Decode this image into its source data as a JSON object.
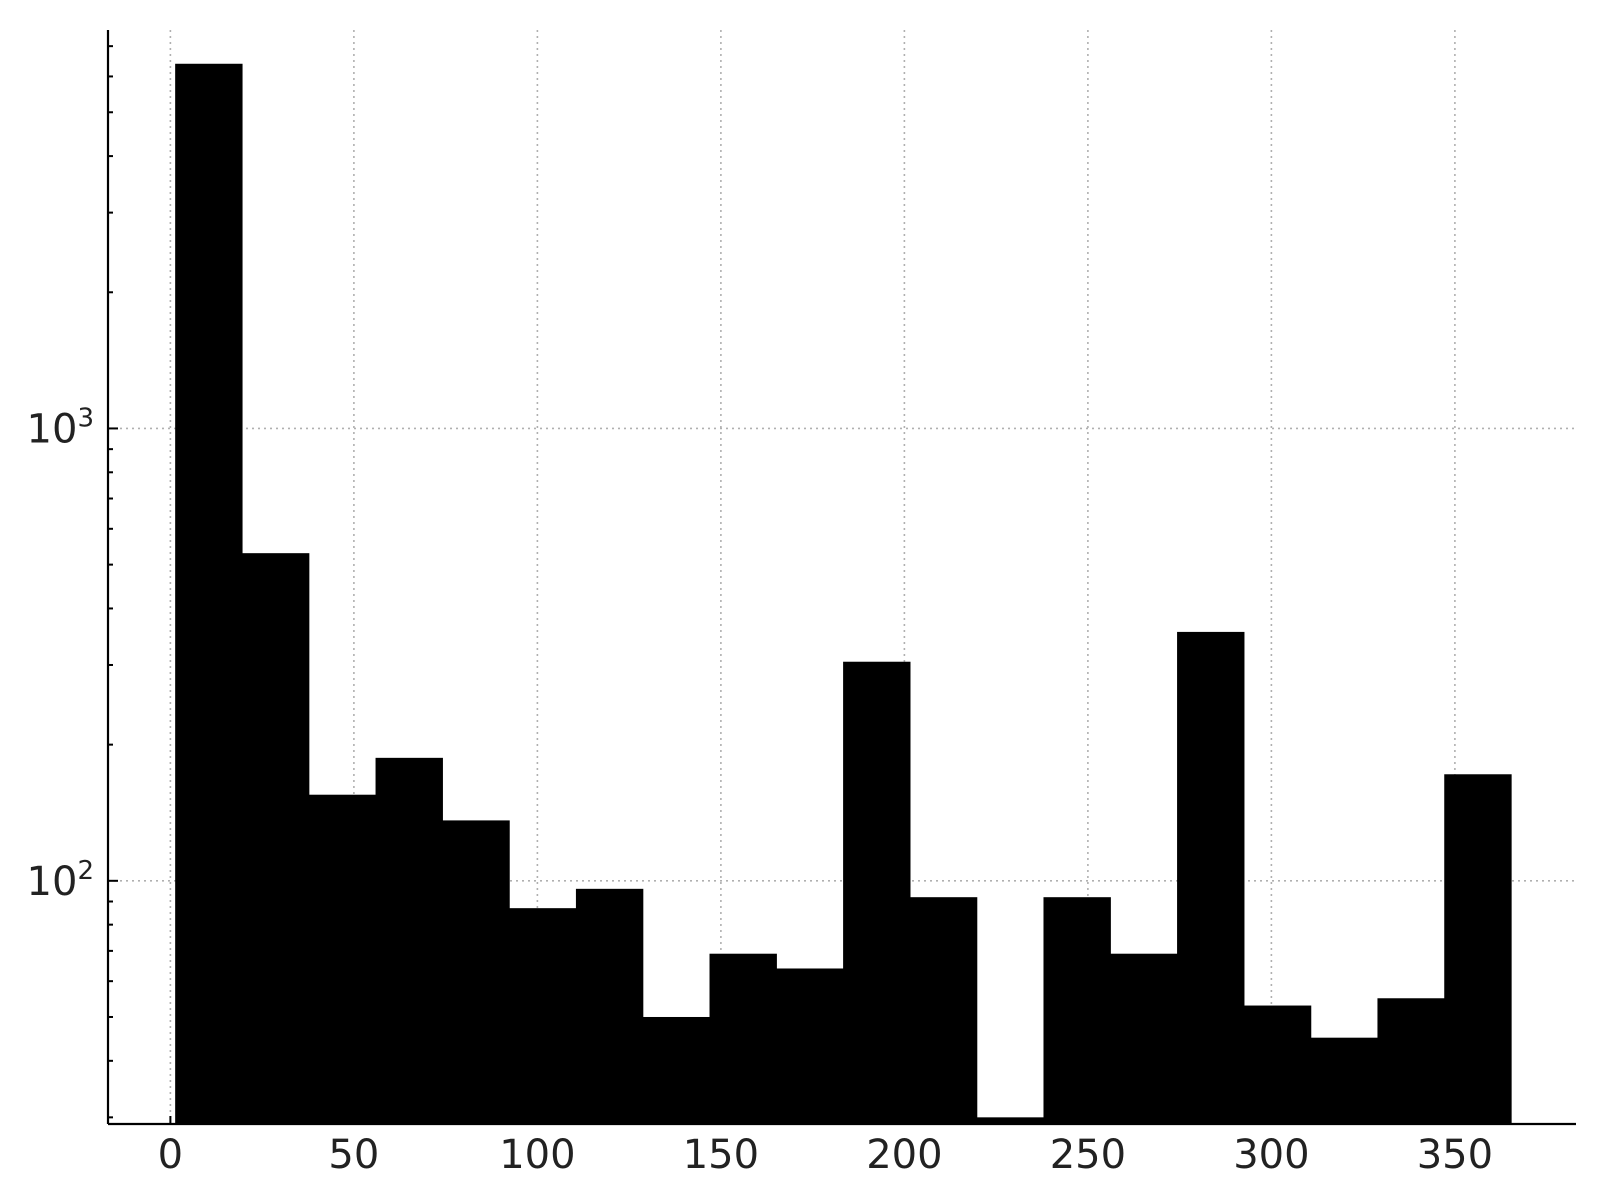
{
  "chart_data": {
    "type": "bar",
    "title": "",
    "xlabel": "",
    "ylabel": "",
    "y_scale": "log",
    "grid": true,
    "legend": "none",
    "bar_color": "#000000",
    "xlim": [
      -17,
      383
    ],
    "ylim": [
      29,
      7600
    ],
    "x_ticks": [
      0,
      50,
      100,
      150,
      200,
      250,
      300,
      350
    ],
    "y_ticks": [
      {
        "value": 100,
        "base": "10",
        "exponent": "2"
      },
      {
        "value": 1000,
        "base": "10",
        "exponent": "3"
      }
    ],
    "bins": [
      {
        "x0": 1.3,
        "x1": 19.5,
        "value": 6400
      },
      {
        "x0": 19.5,
        "x1": 37.7,
        "value": 530
      },
      {
        "x0": 37.7,
        "x1": 55.9,
        "value": 155
      },
      {
        "x0": 55.9,
        "x1": 74.1,
        "value": 187
      },
      {
        "x0": 74.1,
        "x1": 92.3,
        "value": 136
      },
      {
        "x0": 92.3,
        "x1": 110.5,
        "value": 87
      },
      {
        "x0": 110.5,
        "x1": 128.7,
        "value": 96
      },
      {
        "x0": 128.7,
        "x1": 146.9,
        "value": 50
      },
      {
        "x0": 146.9,
        "x1": 165.1,
        "value": 69
      },
      {
        "x0": 165.1,
        "x1": 183.3,
        "value": 64
      },
      {
        "x0": 183.3,
        "x1": 201.5,
        "value": 305
      },
      {
        "x0": 201.5,
        "x1": 219.7,
        "value": 92
      },
      {
        "x0": 219.7,
        "x1": 237.9,
        "value": 30
      },
      {
        "x0": 237.9,
        "x1": 256.1,
        "value": 92
      },
      {
        "x0": 256.1,
        "x1": 274.3,
        "value": 69
      },
      {
        "x0": 274.3,
        "x1": 292.5,
        "value": 355
      },
      {
        "x0": 292.5,
        "x1": 310.7,
        "value": 53
      },
      {
        "x0": 310.7,
        "x1": 328.9,
        "value": 45
      },
      {
        "x0": 328.9,
        "x1": 347.1,
        "value": 55
      },
      {
        "x0": 347.1,
        "x1": 365.3,
        "value": 172
      }
    ]
  }
}
